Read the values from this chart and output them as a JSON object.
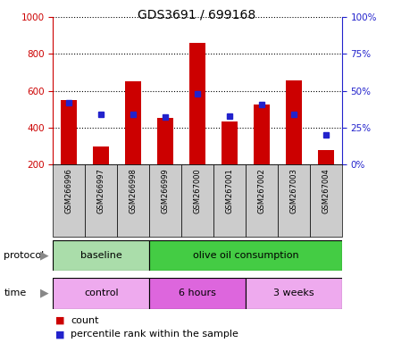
{
  "title": "GDS3691 / 699168",
  "samples": [
    "GSM266996",
    "GSM266997",
    "GSM266998",
    "GSM266999",
    "GSM267000",
    "GSM267001",
    "GSM267002",
    "GSM267003",
    "GSM267004"
  ],
  "counts": [
    550,
    300,
    650,
    455,
    860,
    435,
    525,
    655,
    280
  ],
  "percentile_ranks": [
    42,
    34,
    34,
    32,
    48,
    33,
    41,
    34,
    20
  ],
  "ylim_left": [
    200,
    1000
  ],
  "ylim_right": [
    0,
    100
  ],
  "yticks_left": [
    200,
    400,
    600,
    800,
    1000
  ],
  "yticks_right": [
    0,
    25,
    50,
    75,
    100
  ],
  "bar_color": "#cc0000",
  "dot_color": "#2222cc",
  "grid_color": "#000000",
  "protocol_groups": [
    {
      "label": "baseline",
      "start": 0,
      "end": 3,
      "color": "#aaddaa"
    },
    {
      "label": "olive oil consumption",
      "start": 3,
      "end": 9,
      "color": "#44cc44"
    }
  ],
  "time_groups": [
    {
      "label": "control",
      "start": 0,
      "end": 3,
      "color": "#eeaaee"
    },
    {
      "label": "6 hours",
      "start": 3,
      "end": 6,
      "color": "#dd66dd"
    },
    {
      "label": "3 weeks",
      "start": 6,
      "end": 9,
      "color": "#eeaaee"
    }
  ],
  "legend_count_label": "count",
  "legend_pct_label": "percentile rank within the sample",
  "bar_width": 0.5,
  "left_tick_color": "#cc0000",
  "right_tick_color": "#2222cc",
  "label_bg_color": "#cccccc",
  "arrow_color": "#888888"
}
